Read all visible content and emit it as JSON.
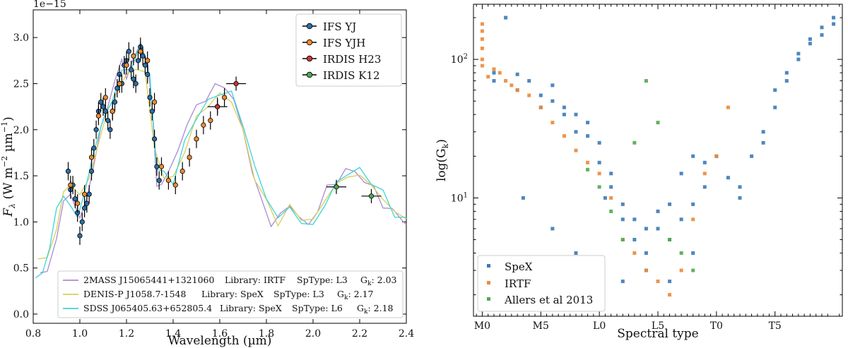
{
  "chart_data": [
    {
      "type": "line",
      "xlabel": "Wavelength (µm)",
      "ylabel": "F_λ (W m⁻² µm⁻¹)",
      "ylabel_parts": {
        "f": "F",
        "sub": "λ",
        "units": " (W m",
        "e1": "−2",
        "mid": " µm",
        "e2": "−1",
        "close": ")"
      },
      "offset_text": "1e−15",
      "xlim": [
        0.8,
        2.4
      ],
      "ylim": [
        -0.1,
        3.3
      ],
      "xticks": [
        "0.8",
        "1.0",
        "1.2",
        "1.4",
        "1.6",
        "1.8",
        "2.0",
        "2.2",
        "2.4"
      ],
      "yticks": [
        "0.0",
        "0.5",
        "1.0",
        "1.5",
        "2.0",
        "2.5",
        "3.0"
      ],
      "legend_top": [
        {
          "label": "IFS YJ",
          "color": "#2b6fa8"
        },
        {
          "label": "IFS YJH",
          "color": "#f08a2c"
        },
        {
          "label": "IRDIS H23",
          "color": "#cc3333"
        },
        {
          "label": "IRDIS K12",
          "color": "#4caa4c"
        }
      ],
      "legend_bottom": [
        {
          "name": "2MASS J15065441+1321060",
          "library": "Library: IRTF",
          "sptype": "SpType: L3",
          "gk_label": "G",
          "gk_sub": "k",
          "gk": ": 2.03",
          "color": "#a98bd4"
        },
        {
          "name": "DENIS-P J1058.7-1548",
          "library": "Library: SpeX",
          "sptype": "SpType: L3",
          "gk_label": "G",
          "gk_sub": "k",
          "gk": ": 2.17",
          "color": "#d8cf58"
        },
        {
          "name": "SDSS J065405.63+652805.4",
          "library": "Library: SpeX",
          "sptype": "SpType: L6",
          "gk_label": "G",
          "gk_sub": "k",
          "gk": ": 2.18",
          "color": "#3ed3dc"
        }
      ],
      "series": [
        {
          "name": "2MASS J15065441+1321060",
          "color": "#a98bd4",
          "x": [
            0.83,
            0.86,
            0.9,
            0.93,
            0.96,
            0.98,
            1.0,
            1.03,
            1.06,
            1.09,
            1.12,
            1.15,
            1.18,
            1.2,
            1.22,
            1.25,
            1.27,
            1.29,
            1.31,
            1.33,
            1.35,
            1.38,
            1.42,
            1.46,
            1.5,
            1.54,
            1.58,
            1.62,
            1.66,
            1.7,
            1.74,
            1.78,
            1.82,
            1.86,
            1.9,
            1.94,
            1.98,
            2.02,
            2.06,
            2.1,
            2.14,
            2.18,
            2.22,
            2.26,
            2.3,
            2.34,
            2.38,
            2.4
          ],
          "y": [
            0.4,
            0.5,
            0.8,
            1.2,
            1.35,
            1.15,
            1.0,
            1.3,
            1.6,
            2.0,
            2.3,
            2.5,
            2.75,
            2.6,
            2.7,
            2.85,
            2.9,
            2.75,
            2.2,
            1.4,
            1.45,
            1.5,
            1.8,
            2.05,
            2.25,
            2.35,
            2.45,
            2.5,
            2.3,
            2.0,
            1.55,
            1.2,
            1.0,
            1.05,
            1.2,
            1.05,
            0.95,
            1.15,
            1.35,
            1.45,
            1.55,
            1.55,
            1.45,
            1.35,
            1.2,
            1.1,
            1.05,
            1.0
          ]
        },
        {
          "name": "DENIS-P J1058.7-1548",
          "color": "#d8cf58",
          "x": [
            0.82,
            0.86,
            0.9,
            0.93,
            0.96,
            1.0,
            1.04,
            1.08,
            1.12,
            1.16,
            1.2,
            1.24,
            1.28,
            1.32,
            1.36,
            1.4,
            1.45,
            1.5,
            1.55,
            1.6,
            1.65,
            1.7,
            1.75,
            1.8,
            1.85,
            1.9,
            1.95,
            2.0,
            2.05,
            2.1,
            2.15,
            2.2,
            2.25,
            2.3,
            2.35,
            2.4
          ],
          "y": [
            0.55,
            0.65,
            0.9,
            1.3,
            1.45,
            1.25,
            1.5,
            1.85,
            2.2,
            2.45,
            2.55,
            2.7,
            2.6,
            1.8,
            1.5,
            1.45,
            1.8,
            2.1,
            2.3,
            2.35,
            2.35,
            1.95,
            1.5,
            1.2,
            1.0,
            1.15,
            1.05,
            1.0,
            1.25,
            1.4,
            1.5,
            1.5,
            1.4,
            1.25,
            1.1,
            1.05
          ]
        },
        {
          "name": "SDSS J065405.63+652805.4",
          "color": "#3ed3dc",
          "x": [
            0.81,
            0.84,
            0.87,
            0.9,
            0.93,
            0.96,
            0.99,
            1.02,
            1.06,
            1.1,
            1.14,
            1.18,
            1.22,
            1.26,
            1.3,
            1.33,
            1.36,
            1.4,
            1.45,
            1.5,
            1.55,
            1.6,
            1.65,
            1.7,
            1.75,
            1.8,
            1.85,
            1.9,
            1.95,
            2.0,
            2.05,
            2.1,
            2.15,
            2.2,
            2.25,
            2.3,
            2.35,
            2.4
          ],
          "y": [
            0.35,
            0.45,
            0.75,
            1.1,
            1.3,
            1.2,
            1.0,
            1.35,
            1.75,
            2.1,
            2.35,
            2.6,
            2.7,
            2.9,
            2.6,
            1.6,
            1.5,
            1.45,
            1.85,
            2.15,
            2.3,
            2.4,
            2.4,
            2.05,
            1.6,
            1.25,
            1.05,
            1.15,
            1.0,
            0.95,
            1.2,
            1.4,
            1.55,
            1.55,
            1.45,
            1.3,
            1.1,
            1.0
          ]
        }
      ],
      "points": [
        {
          "set": "IFS YJ",
          "x": [
            0.95,
            0.96,
            0.97,
            0.98,
            0.99,
            1.0,
            1.01,
            1.02,
            1.03,
            1.04,
            1.05,
            1.06,
            1.07,
            1.08,
            1.09,
            1.1,
            1.11,
            1.12,
            1.13,
            1.14,
            1.15,
            1.16,
            1.17,
            1.18,
            1.19,
            1.2,
            1.21,
            1.22,
            1.23,
            1.24,
            1.25,
            1.26,
            1.27,
            1.28,
            1.29,
            1.3,
            1.31,
            1.32,
            1.33,
            1.34
          ],
          "y": [
            1.55,
            1.35,
            1.4,
            1.25,
            1.1,
            0.85,
            1.0,
            1.15,
            1.2,
            1.3,
            1.55,
            1.8,
            2.0,
            2.2,
            2.3,
            2.25,
            2.2,
            2.1,
            2.0,
            2.2,
            2.3,
            2.45,
            2.6,
            2.5,
            2.7,
            2.75,
            2.85,
            2.65,
            2.55,
            2.5,
            2.75,
            2.9,
            2.8,
            2.7,
            2.6,
            2.35,
            2.2,
            1.9,
            1.6,
            1.45
          ]
        },
        {
          "set": "IFS YJH",
          "x": [
            0.96,
            0.99,
            1.02,
            1.05,
            1.08,
            1.11,
            1.14,
            1.17,
            1.2,
            1.23,
            1.26,
            1.29,
            1.32,
            1.35,
            1.38,
            1.41,
            1.44,
            1.47,
            1.5,
            1.53,
            1.56,
            1.59,
            1.62
          ],
          "y": [
            1.4,
            1.2,
            1.3,
            1.7,
            2.15,
            2.35,
            2.2,
            2.5,
            2.7,
            2.8,
            2.85,
            2.75,
            2.3,
            1.6,
            1.45,
            1.4,
            1.55,
            1.7,
            1.9,
            2.05,
            2.1,
            2.25,
            2.35
          ]
        },
        {
          "set": "IRDIS H23",
          "x": [
            1.59,
            1.67
          ],
          "y": [
            2.25,
            2.5
          ]
        },
        {
          "set": "IRDIS K12",
          "x": [
            2.1,
            2.25
          ],
          "y": [
            1.38,
            1.28
          ]
        }
      ]
    },
    {
      "type": "scatter",
      "xlabel": "Spectral type",
      "ylabel_parts": {
        "pre": "log(G",
        "sub": "k",
        "post": ")"
      },
      "yscale": "log",
      "ylim": [
        1.4,
        250
      ],
      "xlim": [
        -1.5,
        61.5
      ],
      "xticks": [
        "M0",
        "M5",
        "L0",
        "L5",
        "T0",
        "T5"
      ],
      "xtick_values": [
        0,
        10,
        20,
        30,
        40,
        50
      ],
      "yticks": [
        "10¹",
        "10²"
      ],
      "ytick_base": "10",
      "ytick_exps": [
        "1",
        "2"
      ],
      "ytick_values": [
        10,
        100
      ],
      "legend": [
        {
          "label": "SpeX",
          "color": "#3a7ab8"
        },
        {
          "label": "IRTF",
          "color": "#ea8a3a"
        },
        {
          "label": "Allers et al 2013",
          "color": "#52a852"
        }
      ],
      "series": [
        {
          "name": "SpeX",
          "color": "#3a7ab8",
          "x": [
            2,
            2,
            4,
            6,
            6,
            8,
            10,
            10,
            12,
            12,
            14,
            14,
            16,
            16,
            18,
            18,
            20,
            20,
            21,
            22,
            22,
            24,
            24,
            26,
            26,
            28,
            28,
            30,
            30,
            32,
            32,
            34,
            34,
            36,
            36,
            38,
            38,
            40,
            42,
            44,
            44,
            46,
            48,
            48,
            50,
            50,
            52,
            52,
            54,
            54,
            56,
            56,
            58,
            58,
            60,
            60,
            7,
            12,
            16,
            20,
            24,
            28,
            32,
            36
          ],
          "y": [
            80,
            70,
            200,
            78,
            60,
            70,
            55,
            45,
            65,
            50,
            45,
            40,
            40,
            30,
            35,
            28,
            25,
            18,
            10,
            15,
            12,
            9,
            7,
            7,
            5,
            6,
            4,
            8,
            6,
            9,
            5,
            15,
            7,
            20,
            9,
            18,
            12,
            20,
            14,
            12,
            10,
            20,
            30,
            25,
            45,
            60,
            80,
            70,
            110,
            100,
            140,
            130,
            170,
            150,
            200,
            180,
            10,
            6,
            4,
            3,
            2.5,
            3,
            2.5,
            4
          ]
        },
        {
          "name": "IRTF",
          "color": "#ea8a3a",
          "x": [
            0,
            0,
            0,
            0,
            0,
            0,
            1,
            2,
            3,
            4,
            5,
            6,
            8,
            10,
            12,
            14,
            16,
            18,
            20,
            22,
            24,
            26,
            28,
            30,
            32,
            34,
            36,
            38,
            40,
            42
          ],
          "y": [
            180,
            160,
            140,
            120,
            100,
            90,
            75,
            85,
            80,
            70,
            65,
            60,
            55,
            45,
            35,
            28,
            22,
            18,
            15,
            10,
            5,
            4,
            3,
            2.5,
            2,
            3,
            7,
            15,
            20,
            45
          ]
        },
        {
          "name": "Allers et al 2013",
          "color": "#52a852",
          "x": [
            18,
            20,
            22,
            24,
            26,
            28,
            30,
            32,
            34,
            36
          ],
          "y": [
            16,
            12,
            8,
            5,
            25,
            70,
            35,
            5,
            4,
            3
          ]
        }
      ]
    }
  ]
}
